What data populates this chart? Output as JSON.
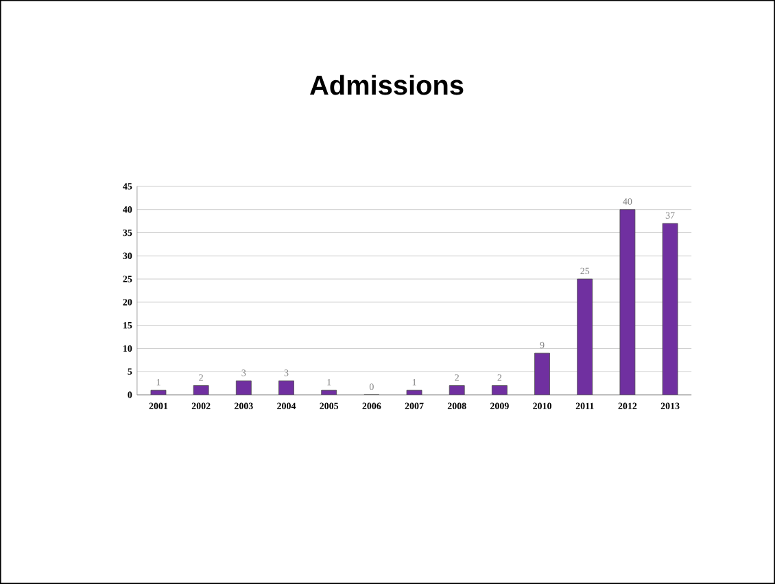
{
  "chart_data": {
    "type": "bar",
    "title": "Admissions",
    "categories": [
      "2001",
      "2002",
      "2003",
      "2004",
      "2005",
      "2006",
      "2007",
      "2008",
      "2009",
      "2010",
      "2011",
      "2012",
      "2013"
    ],
    "values": [
      1,
      2,
      3,
      3,
      1,
      0,
      1,
      2,
      2,
      9,
      25,
      40,
      37
    ],
    "color": "#7030a0",
    "ylim": [
      0,
      45
    ],
    "yticks": [
      0,
      5,
      10,
      15,
      20,
      25,
      30,
      35,
      40,
      45
    ],
    "grid": "y",
    "data_labels": true
  }
}
